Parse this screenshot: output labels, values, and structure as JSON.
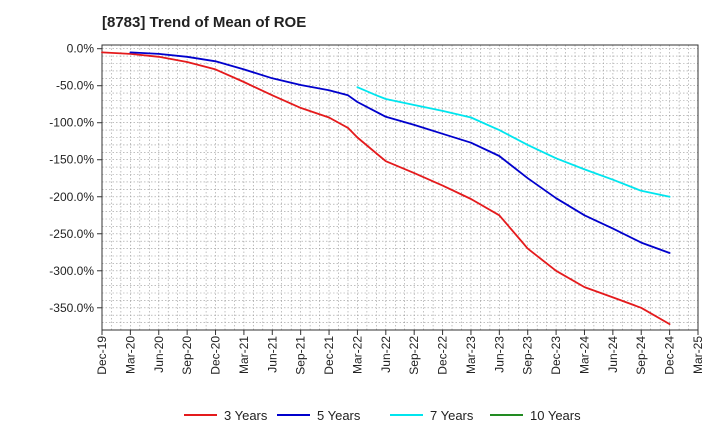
{
  "chart_data": {
    "type": "line",
    "title": "[8783]  Trend of Mean of ROE",
    "xlabel": "",
    "ylabel": "",
    "ylim": [
      -380,
      5
    ],
    "yticks": [
      0,
      -50,
      -100,
      -150,
      -200,
      -250,
      -300,
      -350
    ],
    "ytick_labels": [
      "0.0%",
      "-50.0%",
      "-100.0%",
      "-150.0%",
      "-200.0%",
      "-250.0%",
      "-300.0%",
      "-350.0%"
    ],
    "xticks": [
      0,
      3,
      6,
      9,
      12,
      15,
      18,
      21,
      24,
      27,
      30,
      33,
      36,
      39,
      42,
      45,
      48,
      51,
      54,
      57,
      60,
      63
    ],
    "xtick_labels": [
      "Dec-19",
      "Mar-20",
      "Jun-20",
      "Sep-20",
      "Dec-20",
      "Mar-21",
      "Jun-21",
      "Sep-21",
      "Dec-21",
      "Mar-22",
      "Jun-22",
      "Sep-22",
      "Dec-22",
      "Mar-23",
      "Jun-23",
      "Sep-23",
      "Dec-23",
      "Mar-24",
      "Jun-24",
      "Sep-24",
      "Dec-24",
      "Mar-25"
    ],
    "xlim": [
      0,
      63
    ],
    "x_unit": "months since Dec-19",
    "grid": true,
    "legend_position": "bottom",
    "series": [
      {
        "name": "3 Years",
        "color": "#e41a1c",
        "x": [
          0,
          3,
          6,
          9,
          12,
          15,
          18,
          21,
          24,
          26,
          27,
          30,
          33,
          36,
          39,
          42,
          44,
          45,
          48,
          51,
          54,
          57,
          60
        ],
        "y": [
          -5,
          -7,
          -11,
          -18,
          -28,
          -45,
          -63,
          -80,
          -93,
          -107,
          -120,
          -152,
          -168,
          -185,
          -203,
          -225,
          -255,
          -270,
          -300,
          -322,
          -336,
          -350,
          -372
        ]
      },
      {
        "name": "5 Years",
        "color": "#0000cc",
        "x": [
          3,
          6,
          9,
          12,
          15,
          18,
          21,
          24,
          26,
          27,
          30,
          33,
          36,
          39,
          42,
          45,
          48,
          51,
          54,
          57,
          60
        ],
        "y": [
          -5,
          -7,
          -11,
          -17,
          -28,
          -40,
          -49,
          -56,
          -63,
          -72,
          -92,
          -103,
          -115,
          -127,
          -145,
          -175,
          -202,
          -225,
          -243,
          -262,
          -276
        ]
      },
      {
        "name": "7 Years",
        "color": "#00e5ee",
        "x": [
          27,
          29,
          30,
          33,
          36,
          39,
          42,
          45,
          48,
          51,
          54,
          57,
          60
        ],
        "y": [
          -52,
          -63,
          -68,
          -76,
          -84,
          -93,
          -110,
          -130,
          -148,
          -163,
          -177,
          -192,
          -200
        ]
      },
      {
        "name": "10 Years",
        "color": "#228b22",
        "x": [],
        "y": []
      }
    ]
  }
}
